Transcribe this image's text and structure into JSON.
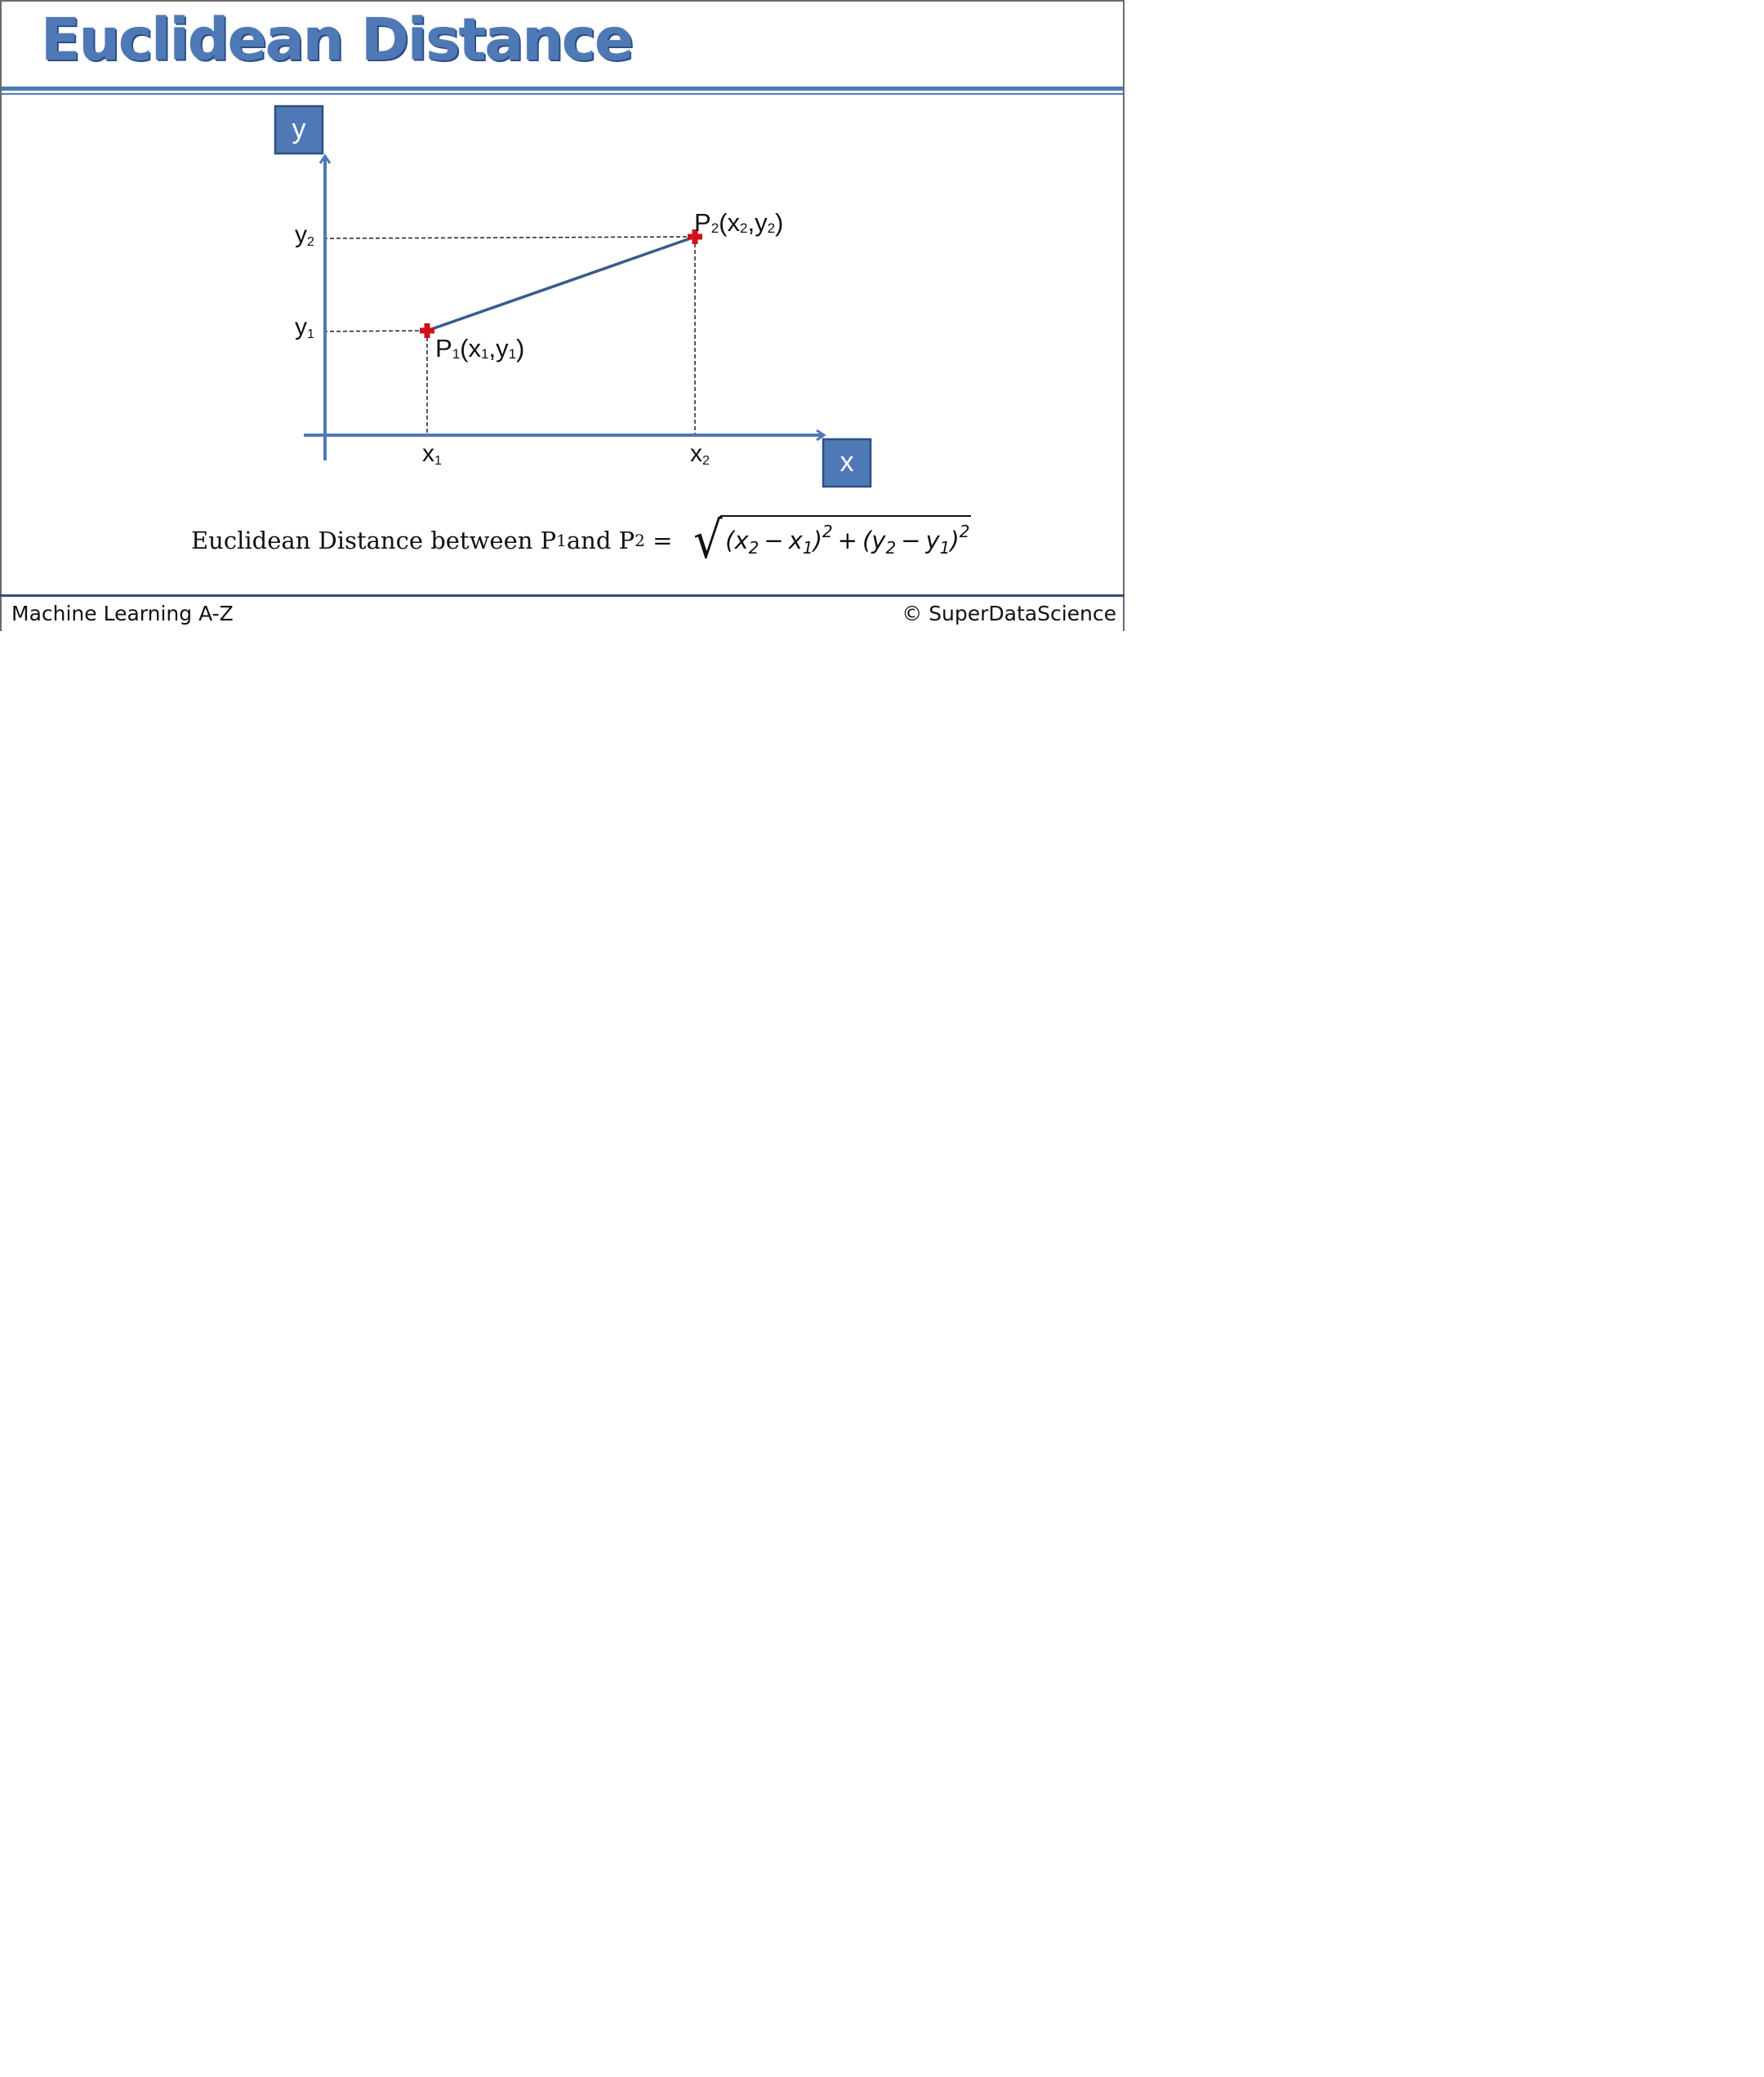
{
  "slide": {
    "title": "Euclidean Distance",
    "footer_left": "Machine Learning A-Z",
    "footer_right": "© SuperDataScience"
  },
  "diagram": {
    "axes": {
      "x_label": "x",
      "y_label": "y"
    },
    "points": [
      {
        "name": "P1",
        "label_main": "P",
        "label_sub": "1",
        "coord_text": "(x",
        "coord_sub_a": "1",
        "coord_mid": ",y",
        "coord_sub_b": "1",
        "coord_end": ")"
      },
      {
        "name": "P2",
        "label_main": "P",
        "label_sub": "2",
        "coord_text": "(x",
        "coord_sub_a": "2",
        "coord_mid": ",y",
        "coord_sub_b": "2",
        "coord_end": ")"
      }
    ],
    "ticks": {
      "x1_main": "x",
      "x1_sub": "1",
      "x2_main": "x",
      "x2_sub": "2",
      "y1_main": "y",
      "y1_sub": "1",
      "y2_main": "y",
      "y2_sub": "2"
    },
    "colors": {
      "axis": "#4f79b6",
      "segment": "#3a5a8c",
      "point": "#d0101a",
      "guide": "#222222"
    }
  },
  "formula": {
    "prefix": "Euclidean Distance between P",
    "p1_sub": "1",
    "and": " and P",
    "p2_sub": "2",
    "equals": " = ",
    "radicand": {
      "open1": "(x",
      "a_sub": "2",
      "minus1": "−",
      "b": "x",
      "b_sub": "1",
      "close1": ")",
      "sq1": "2",
      "plus": "+",
      "open2": "(y",
      "c_sub": "2",
      "minus2": "−",
      "d": "y",
      "d_sub": "1",
      "close2": ")",
      "sq2": "2"
    }
  }
}
